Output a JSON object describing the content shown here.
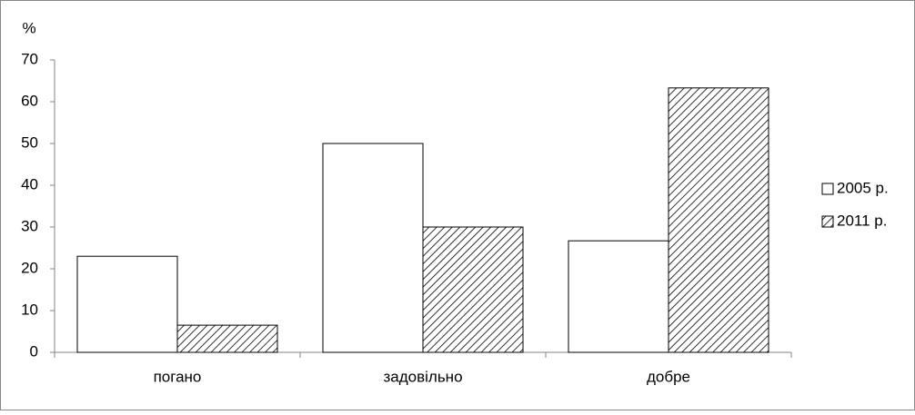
{
  "chart_data": {
    "type": "bar",
    "y_label": "%",
    "categories": [
      "погано",
      "задовільно",
      "добре"
    ],
    "series": [
      {
        "name": "2005 р.",
        "color": "#ffffff",
        "hatch": false,
        "values": [
          23,
          50,
          26.7
        ]
      },
      {
        "name": "2011 р.",
        "color": "#ffffff",
        "hatch": true,
        "values": [
          6.5,
          30,
          63.3
        ]
      }
    ],
    "ylim": [
      0,
      70
    ],
    "yticks": [
      0,
      10,
      20,
      30,
      40,
      50,
      60,
      70
    ],
    "grid": false,
    "legend": "right"
  }
}
